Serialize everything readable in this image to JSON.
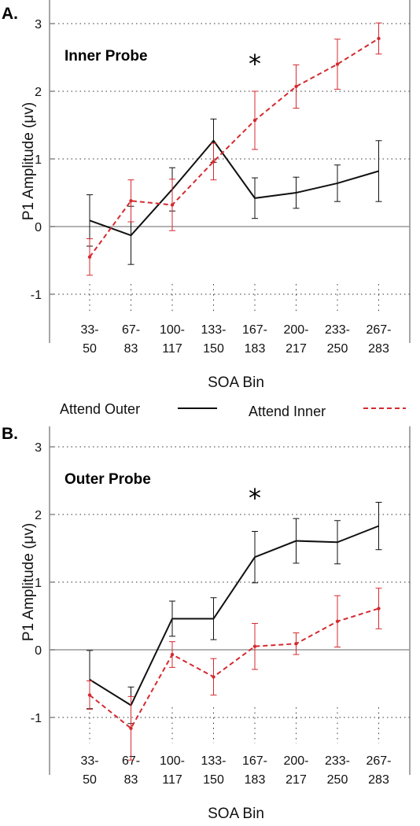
{
  "legend": {
    "attend_outer": "Attend Outer",
    "attend_inner": "Attend Inner"
  },
  "chart_data": [
    {
      "type": "line",
      "panel_label": "A.",
      "title": "Inner Probe",
      "annotation": "*",
      "annotation_category_index": 4,
      "ylabel": "P1 Amplitude (μv)",
      "xlabel": "SOA Bin",
      "ylim": [
        -1.6,
        3.2
      ],
      "yticks": [
        -1,
        0,
        1,
        2,
        3
      ],
      "grid": "horizontal dotted at integer ticks",
      "categories": [
        [
          "33-",
          "50"
        ],
        [
          "67-",
          "83"
        ],
        [
          "100-",
          "117"
        ],
        [
          "133-",
          "150"
        ],
        [
          "167-",
          "183"
        ],
        [
          "200-",
          "217"
        ],
        [
          "233-",
          "250"
        ],
        [
          "267-",
          "283"
        ]
      ],
      "series": [
        {
          "name": "Attend Outer",
          "color": "#111111",
          "dash": "solid",
          "values": [
            0.09,
            -0.13,
            0.55,
            1.27,
            0.42,
            0.5,
            0.64,
            0.82
          ],
          "errors": [
            0.38,
            0.43,
            0.32,
            0.32,
            0.3,
            0.23,
            0.27,
            0.45
          ]
        },
        {
          "name": "Attend Inner",
          "color": "#d42a2f",
          "dash": "dashed",
          "values": [
            -0.45,
            0.38,
            0.32,
            0.96,
            1.57,
            2.07,
            2.4,
            2.78
          ],
          "errors": [
            0.27,
            0.31,
            0.38,
            0.27,
            0.43,
            0.32,
            0.37,
            0.23
          ]
        }
      ]
    },
    {
      "type": "line",
      "panel_label": "B.",
      "title": "Outer Probe",
      "annotation": "*",
      "annotation_category_index": 4,
      "ylabel": "P1 Amplitude (μv)",
      "xlabel": "SOA Bin",
      "ylim": [
        -1.6,
        3.2
      ],
      "yticks": [
        -1,
        0,
        1,
        2,
        3
      ],
      "grid": "horizontal dotted at integer ticks",
      "categories": [
        [
          "33-",
          "50"
        ],
        [
          "67-",
          "83"
        ],
        [
          "100-",
          "117"
        ],
        [
          "133-",
          "150"
        ],
        [
          "167-",
          "183"
        ],
        [
          "200-",
          "217"
        ],
        [
          "233-",
          "250"
        ],
        [
          "267-",
          "283"
        ]
      ],
      "series": [
        {
          "name": "Attend Outer",
          "color": "#111111",
          "dash": "solid",
          "values": [
            -0.44,
            -0.82,
            0.46,
            0.46,
            1.37,
            1.61,
            1.59,
            1.83
          ],
          "errors": [
            0.43,
            0.27,
            0.26,
            0.31,
            0.38,
            0.33,
            0.32,
            0.35
          ]
        },
        {
          "name": "Attend Inner",
          "color": "#d42a2f",
          "dash": "dashed",
          "values": [
            -0.67,
            -1.16,
            -0.07,
            -0.4,
            0.05,
            0.09,
            0.42,
            0.61
          ],
          "errors": [
            0.21,
            0.47,
            0.19,
            0.27,
            0.34,
            0.16,
            0.38,
            0.3
          ]
        }
      ]
    }
  ]
}
